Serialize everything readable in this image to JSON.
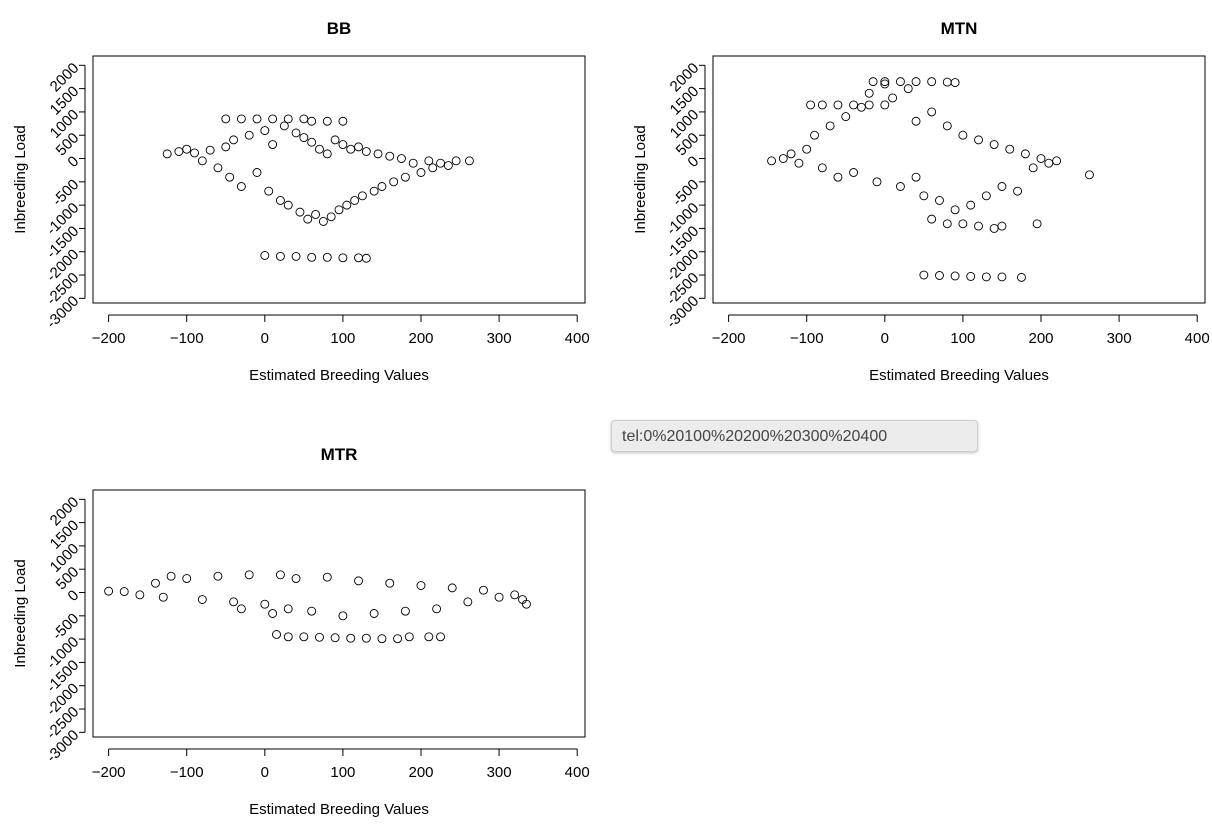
{
  "tooltip": {
    "text": "tel:0%20100%20200%20300%20400"
  },
  "chart_data": [
    {
      "type": "scatter",
      "title": "BB",
      "xlabel": "Estimated Breeding Values",
      "ylabel": "Inbreeding Load",
      "xlim": [
        -220,
        410
      ],
      "ylim": [
        -3100,
        2200
      ],
      "xticks": [
        -200,
        -100,
        0,
        100,
        200,
        300,
        400
      ],
      "xtick_labels": [
        "−200",
        "−100",
        "0",
        "100",
        "200",
        "300",
        "400"
      ],
      "yticks": [
        -3000,
        -2500,
        -2000,
        -1500,
        -1000,
        -500,
        0,
        500,
        1000,
        1500,
        2000
      ],
      "ytick_labels": [
        "-3000",
        "-2500",
        "-2000",
        "-1500",
        "-1000",
        "-500",
        "0",
        "500",
        "1000",
        "1500",
        "2000"
      ],
      "marker": "open-circle",
      "series": [
        {
          "points": [
            [
              -125,
              100
            ],
            [
              -110,
              150
            ],
            [
              -100,
              200
            ],
            [
              -90,
              120
            ],
            [
              -80,
              -50
            ],
            [
              -70,
              180
            ],
            [
              -60,
              -200
            ],
            [
              -50,
              250
            ],
            [
              -45,
              -400
            ],
            [
              -40,
              400
            ],
            [
              -30,
              -600
            ],
            [
              -20,
              500
            ],
            [
              -10,
              -300
            ],
            [
              0,
              600
            ],
            [
              5,
              -700
            ],
            [
              10,
              300
            ],
            [
              20,
              -900
            ],
            [
              25,
              700
            ],
            [
              30,
              -1000
            ],
            [
              40,
              550
            ],
            [
              45,
              -1150
            ],
            [
              50,
              450
            ],
            [
              55,
              -1300
            ],
            [
              60,
              350
            ],
            [
              65,
              -1200
            ],
            [
              70,
              200
            ],
            [
              75,
              -1350
            ],
            [
              80,
              100
            ],
            [
              85,
              -1250
            ],
            [
              90,
              400
            ],
            [
              95,
              -1100
            ],
            [
              100,
              300
            ],
            [
              105,
              -1000
            ],
            [
              110,
              200
            ],
            [
              115,
              -900
            ],
            [
              120,
              250
            ],
            [
              125,
              -800
            ],
            [
              130,
              150
            ],
            [
              140,
              -700
            ],
            [
              145,
              100
            ],
            [
              150,
              -600
            ],
            [
              160,
              50
            ],
            [
              165,
              -500
            ],
            [
              175,
              0
            ],
            [
              180,
              -400
            ],
            [
              190,
              -100
            ],
            [
              200,
              -300
            ],
            [
              210,
              -50
            ],
            [
              215,
              -200
            ],
            [
              225,
              -100
            ],
            [
              235,
              -150
            ],
            [
              245,
              -50
            ],
            [
              262,
              -50
            ],
            [
              -50,
              850
            ],
            [
              -30,
              850
            ],
            [
              -10,
              850
            ],
            [
              10,
              850
            ],
            [
              30,
              850
            ],
            [
              50,
              850
            ],
            [
              60,
              800
            ],
            [
              80,
              800
            ],
            [
              100,
              800
            ],
            [
              0,
              -2080
            ],
            [
              20,
              -2100
            ],
            [
              40,
              -2100
            ],
            [
              60,
              -2120
            ],
            [
              80,
              -2120
            ],
            [
              100,
              -2130
            ],
            [
              120,
              -2130
            ],
            [
              130,
              -2140
            ]
          ]
        }
      ]
    },
    {
      "type": "scatter",
      "title": "MTN",
      "xlabel": "Estimated Breeding Values",
      "ylabel": "Inbreeding Load",
      "xlim": [
        -220,
        410
      ],
      "ylim": [
        -3100,
        2200
      ],
      "xticks": [
        -200,
        -100,
        0,
        100,
        200,
        300,
        400
      ],
      "xtick_labels": [
        "−200",
        "−100",
        "0",
        "100",
        "200",
        "300",
        "400"
      ],
      "yticks": [
        -3000,
        -2500,
        -2000,
        -1500,
        -1000,
        -500,
        0,
        500,
        1000,
        1500,
        2000
      ],
      "ytick_labels": [
        "-3000",
        "-2500",
        "-2000",
        "-1500",
        "-1000",
        "-500",
        "0",
        "500",
        "1000",
        "1500",
        "2000"
      ],
      "marker": "open-circle",
      "series": [
        {
          "points": [
            [
              -145,
              -50
            ],
            [
              -130,
              0
            ],
            [
              -120,
              100
            ],
            [
              -110,
              -100
            ],
            [
              -100,
              200
            ],
            [
              -95,
              1150
            ],
            [
              -80,
              1150
            ],
            [
              -60,
              1150
            ],
            [
              -40,
              1150
            ],
            [
              -20,
              1150
            ],
            [
              0,
              1150
            ],
            [
              -90,
              500
            ],
            [
              -80,
              -200
            ],
            [
              -70,
              700
            ],
            [
              -60,
              -400
            ],
            [
              -50,
              900
            ],
            [
              -40,
              -300
            ],
            [
              -30,
              1100
            ],
            [
              -20,
              1400
            ],
            [
              -10,
              -500
            ],
            [
              0,
              1600
            ],
            [
              10,
              1300
            ],
            [
              20,
              -600
            ],
            [
              30,
              1500
            ],
            [
              40,
              800
            ],
            [
              50,
              -800
            ],
            [
              60,
              1000
            ],
            [
              70,
              -900
            ],
            [
              80,
              700
            ],
            [
              90,
              -1100
            ],
            [
              100,
              500
            ],
            [
              110,
              -1000
            ],
            [
              120,
              400
            ],
            [
              130,
              -800
            ],
            [
              140,
              300
            ],
            [
              150,
              -600
            ],
            [
              160,
              200
            ],
            [
              170,
              -700
            ],
            [
              180,
              100
            ],
            [
              190,
              -200
            ],
            [
              200,
              0
            ],
            [
              210,
              -100
            ],
            [
              220,
              -50
            ],
            [
              262,
              -350
            ],
            [
              40,
              -400
            ],
            [
              60,
              -1300
            ],
            [
              80,
              -1400
            ],
            [
              100,
              -1400
            ],
            [
              120,
              -1450
            ],
            [
              140,
              -1500
            ],
            [
              150,
              -1450
            ],
            [
              195,
              -1400
            ],
            [
              -15,
              1650
            ],
            [
              0,
              1650
            ],
            [
              20,
              1650
            ],
            [
              40,
              1650
            ],
            [
              60,
              1650
            ],
            [
              80,
              1640
            ],
            [
              90,
              1630
            ],
            [
              50,
              -2500
            ],
            [
              70,
              -2510
            ],
            [
              90,
              -2520
            ],
            [
              110,
              -2530
            ],
            [
              130,
              -2540
            ],
            [
              150,
              -2540
            ],
            [
              175,
              -2550
            ]
          ]
        }
      ]
    },
    {
      "type": "scatter",
      "title": "MTR",
      "xlabel": "Estimated Breeding Values",
      "ylabel": "Inbreeding Load",
      "xlim": [
        -220,
        410
      ],
      "ylim": [
        -3100,
        2200
      ],
      "xticks": [
        -200,
        -100,
        0,
        100,
        200,
        300,
        400
      ],
      "xtick_labels": [
        "−200",
        "−100",
        "0",
        "100",
        "200",
        "300",
        "400"
      ],
      "yticks": [
        -3000,
        -2500,
        -2000,
        -1500,
        -1000,
        -500,
        0,
        500,
        1000,
        1500,
        2000
      ],
      "ytick_labels": [
        "-3000",
        "-2500",
        "-2000",
        "-1500",
        "-1000",
        "-500",
        "0",
        "500",
        "1000",
        "1500",
        "2000"
      ],
      "marker": "open-circle",
      "series": [
        {
          "points": [
            [
              -200,
              30
            ],
            [
              -180,
              20
            ],
            [
              -160,
              -50
            ],
            [
              -140,
              200
            ],
            [
              -130,
              -100
            ],
            [
              -120,
              350
            ],
            [
              -100,
              300
            ],
            [
              -80,
              -150
            ],
            [
              -60,
              350
            ],
            [
              -40,
              -200
            ],
            [
              -20,
              380
            ],
            [
              0,
              -250
            ],
            [
              20,
              380
            ],
            [
              30,
              -350
            ],
            [
              40,
              300
            ],
            [
              60,
              -400
            ],
            [
              80,
              330
            ],
            [
              100,
              -500
            ],
            [
              120,
              250
            ],
            [
              140,
              -450
            ],
            [
              160,
              200
            ],
            [
              180,
              -400
            ],
            [
              200,
              150
            ],
            [
              220,
              -350
            ],
            [
              240,
              100
            ],
            [
              260,
              -200
            ],
            [
              280,
              50
            ],
            [
              300,
              -100
            ],
            [
              320,
              -50
            ],
            [
              330,
              -150
            ],
            [
              335,
              -250
            ],
            [
              -30,
              -350
            ],
            [
              10,
              -450
            ],
            [
              15,
              -900
            ],
            [
              30,
              -950
            ],
            [
              50,
              -950
            ],
            [
              70,
              -960
            ],
            [
              90,
              -970
            ],
            [
              110,
              -980
            ],
            [
              130,
              -980
            ],
            [
              150,
              -990
            ],
            [
              170,
              -990
            ],
            [
              185,
              -950
            ],
            [
              210,
              -950
            ],
            [
              225,
              -950
            ]
          ]
        }
      ]
    }
  ]
}
